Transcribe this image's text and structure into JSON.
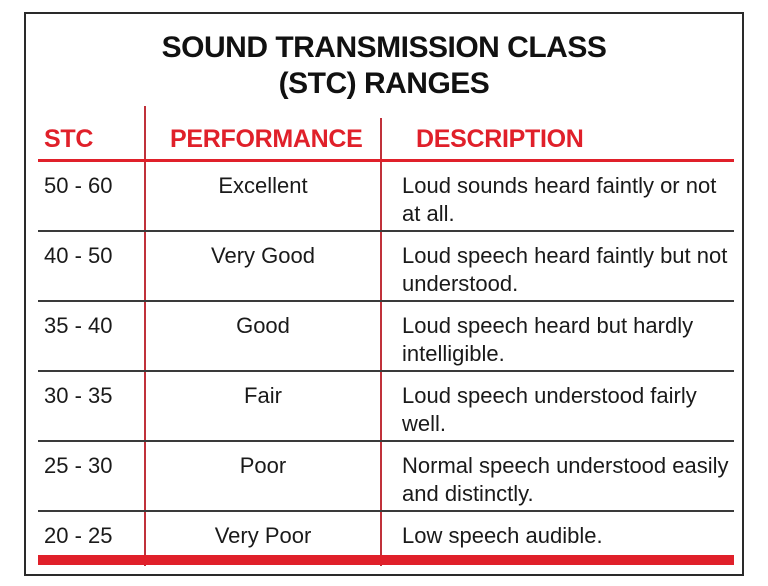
{
  "title": {
    "line1": "SOUND TRANSMISSION CLASS",
    "line2": "(STC) RANGES"
  },
  "columns": {
    "stc": "STC",
    "performance": "PERFORMANCE",
    "description": "DESCRIPTION"
  },
  "colors": {
    "accent_red": "#e0202a",
    "text": "#1a1a1a",
    "border": "#2a2a2a"
  },
  "rows": [
    {
      "stc": "50 - 60",
      "performance": "Excellent",
      "description": "Loud sounds heard faintly or not at all."
    },
    {
      "stc": "40 - 50",
      "performance": "Very Good",
      "description": "Loud speech heard faintly but not understood."
    },
    {
      "stc": "35 - 40",
      "performance": "Good",
      "description": "Loud speech heard but hardly intelligible."
    },
    {
      "stc": "30 - 35",
      "performance": "Fair",
      "description": "Loud speech understood fairly well."
    },
    {
      "stc": "25 - 30",
      "performance": "Poor",
      "description": "Normal speech understood easily and distinctly."
    },
    {
      "stc": "20 - 25",
      "performance": "Very Poor",
      "description": "Low speech audible."
    }
  ]
}
